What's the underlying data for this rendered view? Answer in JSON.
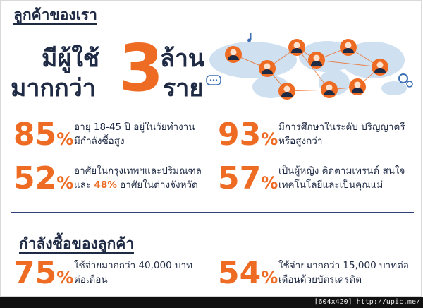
{
  "header": {
    "title": "ลูกค้าของเรา"
  },
  "hero": {
    "line1": "มีผู้ใช้",
    "line2": "มากกว่า",
    "number": "3",
    "unit1": "ล้าน",
    "unit2": "ราย"
  },
  "stats": [
    {
      "pct": "85",
      "sign": "%",
      "line1": "อายุ 18-45 ปี อยู่ในวัยทำงาน",
      "line2": "มีกำลังซื้อสูง"
    },
    {
      "pct": "93",
      "sign": "%",
      "line1": "มีการศึกษาในระดับ ปริญญาตรี",
      "line2": "หรือสูงกว่า"
    },
    {
      "pct": "52",
      "sign": "%",
      "line1": "อาศัยในกรุงเทพฯและปริมณฑล",
      "line2_prefix": "และ ",
      "line2_highlight": "48%",
      "line2_suffix": " อาศัยในต่างจังหวัด"
    },
    {
      "pct": "57",
      "sign": "%",
      "line1": "เป็นผู้หญิง ติดตามเทรนด์ สนใจ",
      "line2": "เทคโนโลยีและเป็นคุณแม่"
    }
  ],
  "purchasing": {
    "title": "กำลังซื้อของลูกค้า",
    "items": [
      {
        "pct": "75",
        "sign": "%",
        "line1": "ใช้จ่ายมากกว่า 40,000 บาท",
        "line2": "ต่อเดือน"
      },
      {
        "pct": "54",
        "sign": "%",
        "line1": "ใช้จ่ายมากกว่า 15,000 บาทต่อ",
        "line2": "เดือนด้วยบัตรเครดิต"
      }
    ]
  },
  "watermark": "[604x420] http://upic.me/",
  "colors": {
    "accent": "#ee6b23",
    "navy": "#1f2a44",
    "map": "#cfe0f1",
    "avatar_ring": "#ee6b23"
  }
}
